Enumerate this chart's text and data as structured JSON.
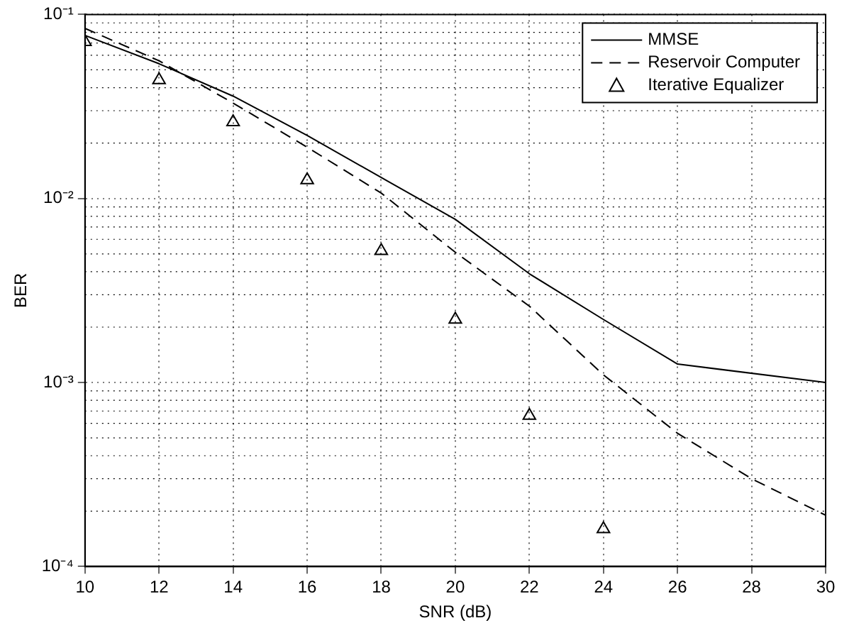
{
  "chart_data": {
    "type": "line",
    "xlabel": "SNR (dB)",
    "ylabel": "BER",
    "log": "y",
    "grid": true,
    "legend": "top right",
    "x": [
      10,
      12,
      14,
      16,
      18,
      20,
      22,
      24,
      26,
      28,
      30
    ],
    "xlim": [
      10,
      30
    ],
    "xticks": [
      10,
      12,
      14,
      16,
      18,
      20,
      22,
      24,
      26,
      28,
      30
    ],
    "ylim": [
      0.0001,
      0.1
    ],
    "yticks": [
      {
        "value": 0.0001,
        "label": "10⁻⁴"
      },
      {
        "value": 0.001,
        "label": "10⁻³"
      },
      {
        "value": 0.01,
        "label": "10⁻²"
      },
      {
        "value": 0.1,
        "label": "10⁻¹"
      }
    ],
    "series": [
      {
        "name": "MMSE",
        "color": "#000000",
        "line_style": "solid",
        "marker": "none",
        "x": [
          10,
          12,
          14,
          16,
          18,
          20,
          22,
          24,
          26,
          30
        ],
        "values": [
          0.077,
          0.054,
          0.036,
          0.022,
          0.013,
          0.0077,
          0.0039,
          0.0022,
          0.00126,
          0.001
        ]
      },
      {
        "name": "Reservoir Computer",
        "color": "#000000",
        "line_style": "dashed",
        "marker": "none",
        "values": [
          0.084,
          0.056,
          0.033,
          0.019,
          0.0107,
          0.0051,
          0.0026,
          0.0011,
          0.00053,
          0.0003,
          0.00019
        ]
      },
      {
        "name": "Iterative Equalizer",
        "type": "scatter",
        "color": "#000000",
        "marker": "triangle",
        "x": [
          10,
          12,
          14,
          16,
          18,
          20,
          22,
          24
        ],
        "values": [
          0.071,
          0.044,
          0.026,
          0.0126,
          0.0052,
          0.0022,
          0.00066,
          0.00016
        ]
      }
    ]
  }
}
